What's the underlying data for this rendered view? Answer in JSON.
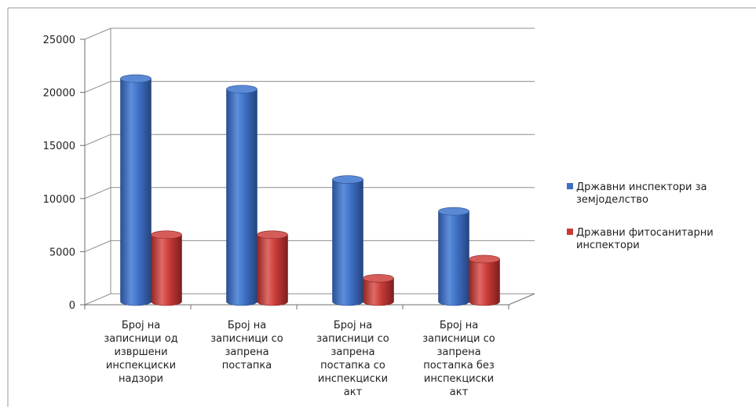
{
  "chart_data": {
    "type": "bar",
    "title": "",
    "xlabel": "",
    "ylabel": "",
    "ylim": [
      0,
      25000
    ],
    "yticks": [
      0,
      5000,
      10000,
      15000,
      20000,
      25000
    ],
    "y_tick_labels": [
      "0",
      "5000",
      "10000",
      "15000",
      "20000",
      "25000"
    ],
    "grid": true,
    "legend_position": "right",
    "categories": [
      [
        "Број на",
        "записници од",
        "извршени",
        "инспекциски",
        "надзори"
      ],
      [
        "Број на",
        "записници со",
        "запрена",
        "постапка"
      ],
      [
        "Број на",
        "записници со",
        "запрена",
        "постапка со",
        "инспекциски",
        "акт"
      ],
      [
        "Број на",
        "записници со",
        "запрена",
        "постапка без",
        "инспекциски",
        "акт"
      ]
    ],
    "series": [
      {
        "name": "Државни инспектори за земјоделство",
        "legend_lines": [
          "Државни инспектори за",
          "земјоделство"
        ],
        "color": "#3e6fc4",
        "values": [
          21000,
          20000,
          11500,
          8500
        ]
      },
      {
        "name": "Државни фитосанитарни инспектори",
        "legend_lines": [
          "Државни фитосанитарни",
          "инспектори"
        ],
        "color": "#c83a37",
        "values": [
          6300,
          6300,
          2200,
          4000
        ]
      }
    ]
  }
}
